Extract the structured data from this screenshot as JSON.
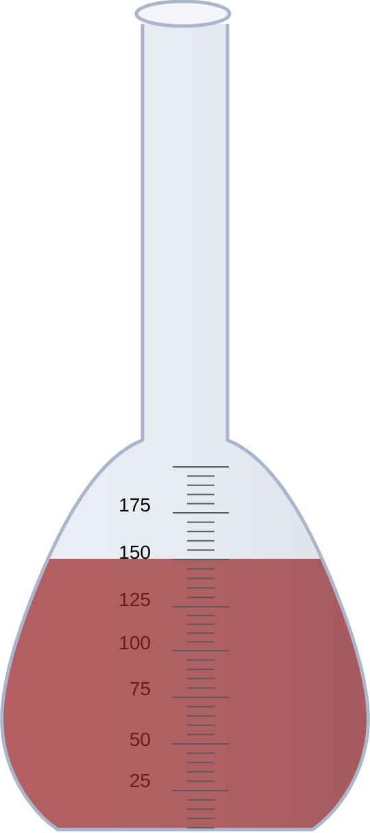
{
  "flask": {
    "scale_labels": [
      "25",
      "50",
      "75",
      "100",
      "125",
      "150",
      "175"
    ],
    "liquid_level": 150,
    "colors": {
      "glass": "#e6eaf1",
      "glass_outline": "#a9b6cb",
      "liquid": "#b05f62",
      "label_in_liquid": "#6b1a1a",
      "label_above_liquid": "#000000",
      "tick": "#5a5a5a"
    }
  }
}
